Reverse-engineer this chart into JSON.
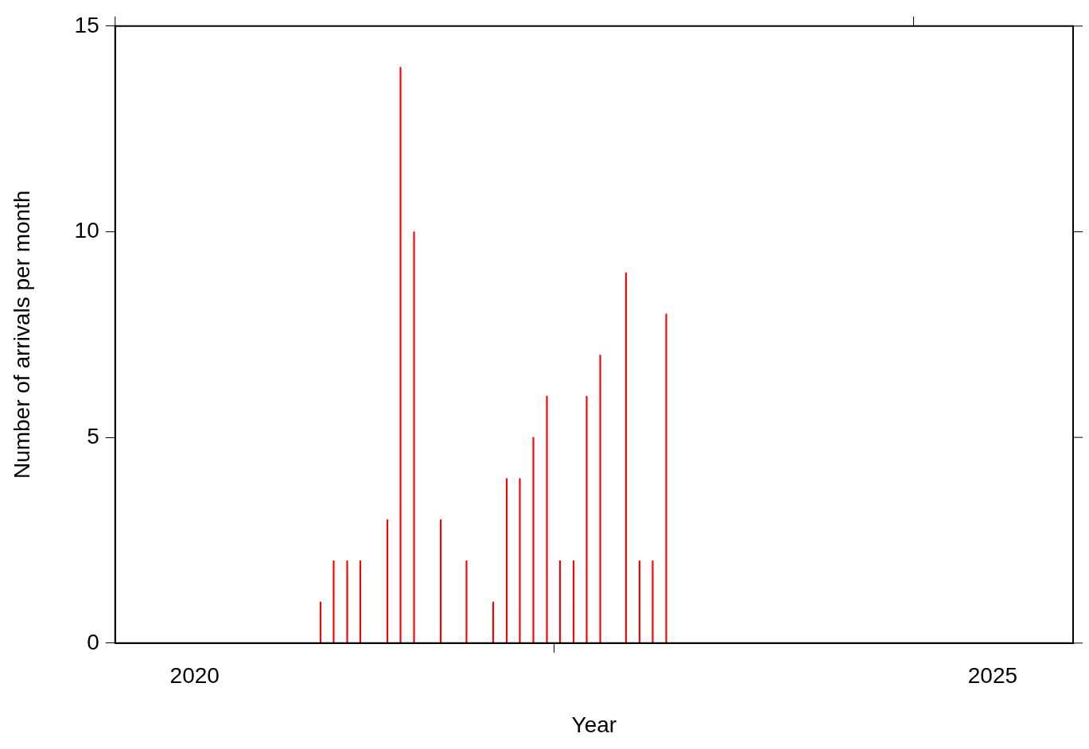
{
  "chart_data": {
    "type": "bar",
    "xlabel": "Year",
    "ylabel": "Number of arrivals per month",
    "x": [
      "2021-04-15",
      "2021-05-15",
      "2021-06-15",
      "2021-07-15",
      "2021-09-15",
      "2021-10-15",
      "2021-11-15",
      "2022-01-15",
      "2022-03-15",
      "2022-05-15",
      "2022-06-15",
      "2022-07-15",
      "2022-08-15",
      "2022-09-15",
      "2022-10-15",
      "2022-11-15",
      "2022-12-15",
      "2023-01-15",
      "2023-03-15",
      "2023-04-15",
      "2023-05-15",
      "2023-06-15"
    ],
    "values": [
      1,
      2,
      2,
      2,
      3,
      14,
      10,
      3,
      2,
      1,
      4,
      4,
      5,
      6,
      2,
      2,
      6,
      7,
      9,
      2,
      2,
      8
    ],
    "color": "#ff0000",
    "xlim": [
      "2020-01-01",
      "2026-01-01"
    ],
    "xticks": [
      {
        "value": "2020-01-01",
        "label": null
      },
      {
        "value": "2020-07-01",
        "label": "2020"
      },
      {
        "value": "2025-01-01",
        "label": null
      },
      {
        "value": "2025-07-01",
        "label": "2025"
      }
    ],
    "ylim": [
      0,
      15
    ],
    "yticks": [
      0,
      5,
      10,
      15
    ],
    "grid": false,
    "legend": false
  }
}
